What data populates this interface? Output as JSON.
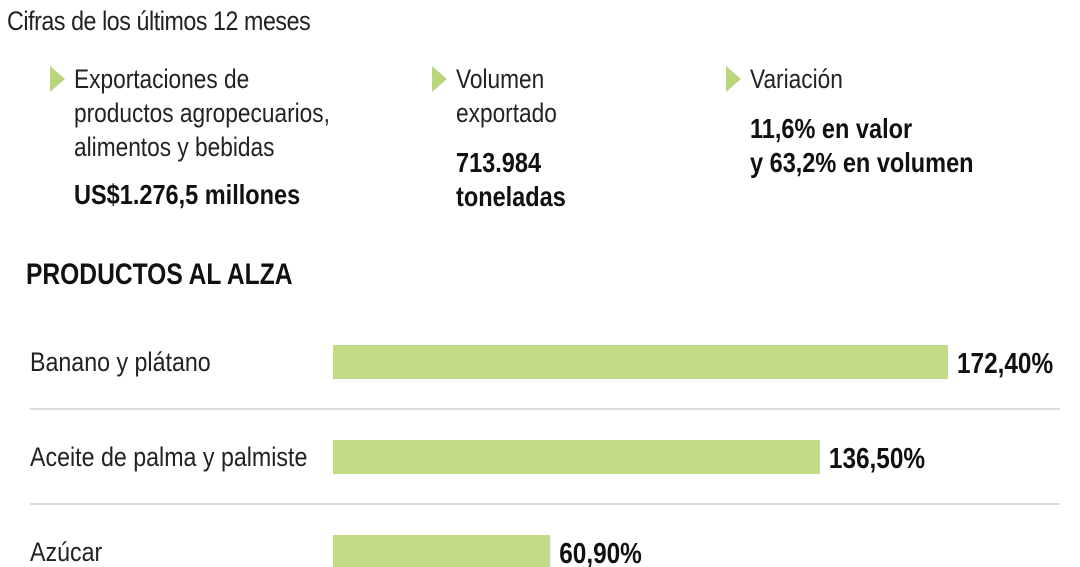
{
  "subtitle": "Cifras de los últimos 12 meses",
  "stats": {
    "exports": {
      "label_lines": [
        "Exportaciones de",
        "productos agropecuarios,",
        "alimentos y bebidas"
      ],
      "value_lines": [
        "US$1.276,5 millones"
      ]
    },
    "volume": {
      "label_lines": [
        "Volumen",
        "exportado"
      ],
      "value_lines": [
        "713.984",
        "toneladas"
      ]
    },
    "variation": {
      "label_lines": [
        "Variación"
      ],
      "value_lines": [
        "11,6% en valor",
        "y 63,2% en volumen"
      ]
    }
  },
  "colors": {
    "bar": "#c2da86",
    "marker": "#b7d77a",
    "divider": "#cfcfcf"
  },
  "chart_data": {
    "type": "bar",
    "orientation": "horizontal",
    "title": "PRODUCTOS AL ALZA",
    "categories": [
      "Banano y plátano",
      "Aceite de palma y palmiste",
      "Azúcar"
    ],
    "values": [
      172.4,
      136.5,
      60.9
    ],
    "value_labels": [
      "172,40%",
      "136,50%",
      "60,90%"
    ],
    "unit": "%",
    "grid": false
  }
}
